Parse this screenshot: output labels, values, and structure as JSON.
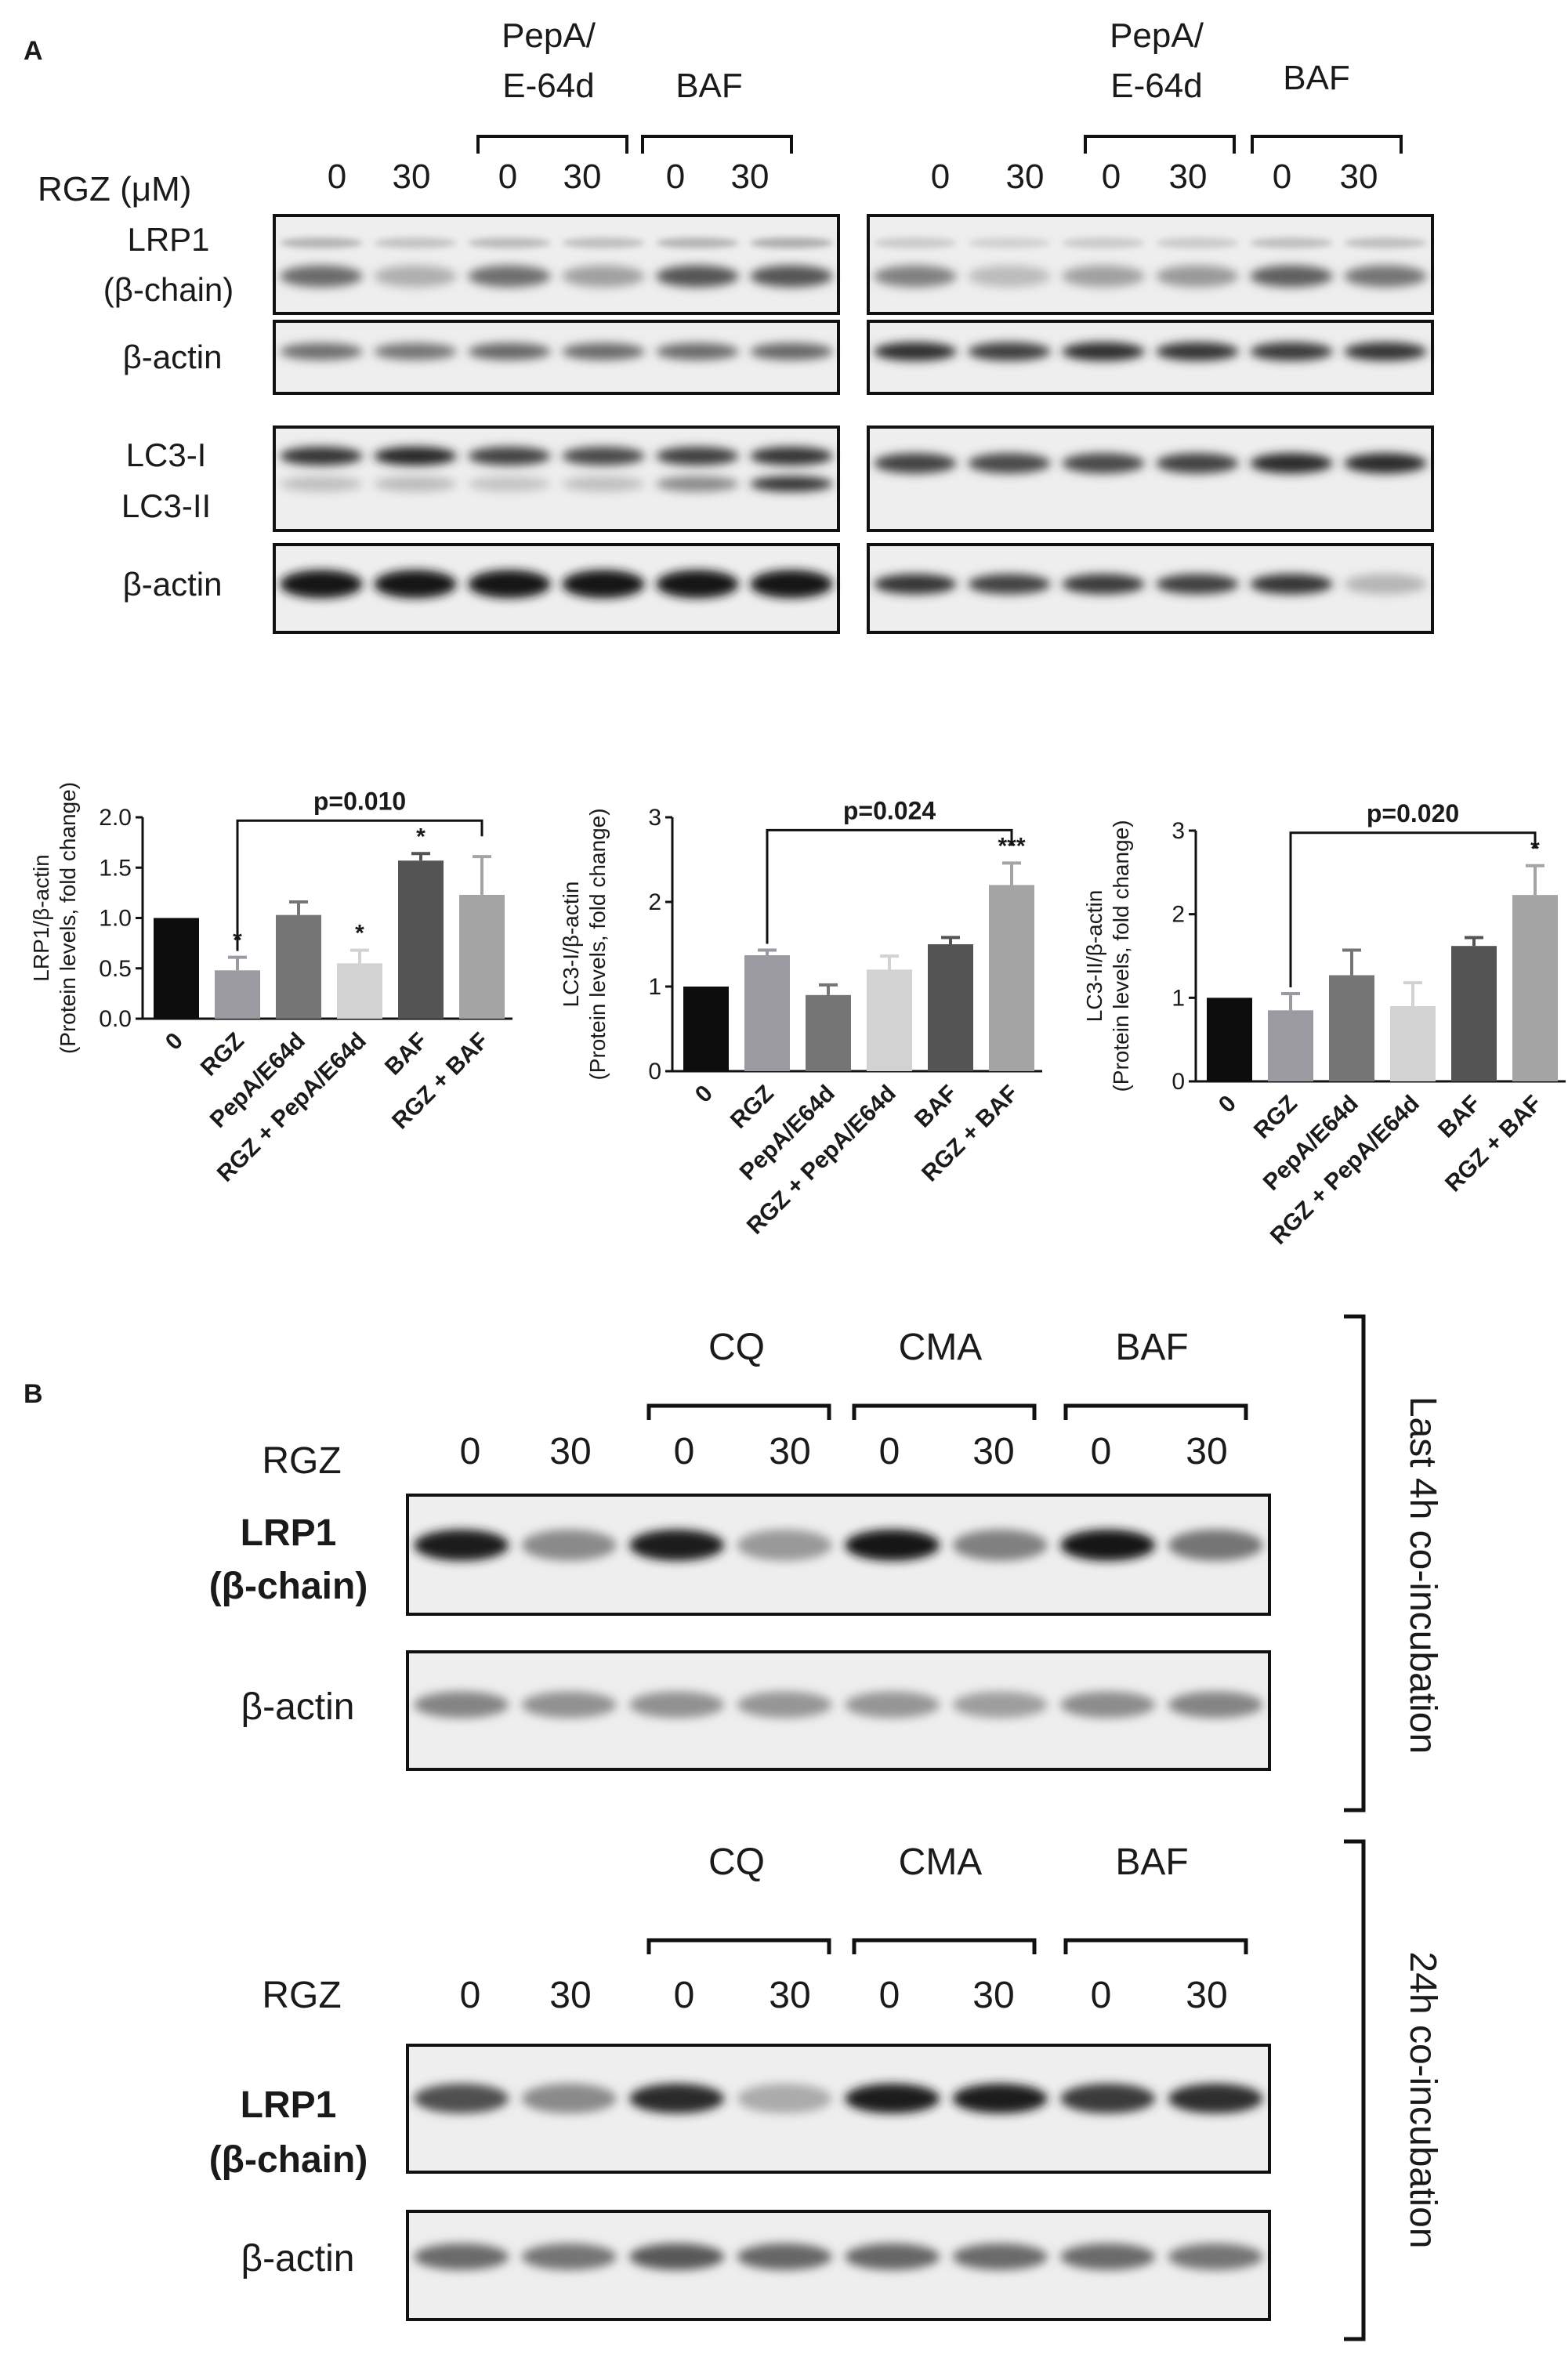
{
  "panel_a": {
    "letter": "A",
    "header": {
      "group1": "PepA/",
      "group1b": "E-64d",
      "group2": "BAF",
      "row_label": "RGZ (μM)",
      "doses": [
        "0",
        "30",
        "0",
        "30",
        "0",
        "30"
      ]
    },
    "row_labels": {
      "lrp1_line1": "LRP1",
      "lrp1_line2": "(β-chain)",
      "actin": "β-actin",
      "lc3_1": "LC3-I",
      "lc3_2": "LC3-II"
    }
  },
  "panel_b": {
    "letter": "B",
    "groups": [
      "CQ",
      "CMA",
      "BAF"
    ],
    "rgz_label": "RGZ",
    "doses": [
      "0",
      "30",
      "0",
      "30",
      "0",
      "30",
      "0",
      "30"
    ],
    "lrp1_line1": "LRP1",
    "lrp1_line2": "(β-chain)",
    "actin": "β-actin",
    "side_top": "Last 4h co-incubation",
    "side_bottom": "24h co-incubation"
  },
  "chart_data": [
    {
      "type": "bar",
      "categories": [
        "0",
        "RGZ",
        "PepA/E64d",
        "RGZ + PepA/E64d",
        "BAF",
        "RGZ + BAF"
      ],
      "values": [
        1.0,
        0.48,
        1.03,
        0.55,
        1.57,
        1.23
      ],
      "errors": [
        0,
        0.13,
        0.13,
        0.13,
        0.07,
        0.38
      ],
      "significance": [
        "",
        "*",
        "",
        "*",
        "*",
        ""
      ],
      "colors": [
        "#0d0d0d",
        "#9a9aa0",
        "#757575",
        "#d2d2d2",
        "#545454",
        "#a4a4a4"
      ],
      "ylabel_line1": "LRP1/β-actin",
      "ylabel_line2": "(Protein levels, fold change)",
      "yticks": [
        "0.0",
        "0.5",
        "1.0",
        "1.5",
        "2.0"
      ],
      "ylim": [
        0,
        2.0
      ],
      "comparison": {
        "from": 1,
        "to": 5,
        "label": "p=0.010"
      }
    },
    {
      "type": "bar",
      "categories": [
        "0",
        "RGZ",
        "PepA/E64d",
        "RGZ + PepA/E64d",
        "BAF",
        "RGZ + BAF"
      ],
      "values": [
        1.0,
        1.37,
        0.9,
        1.2,
        1.5,
        2.2
      ],
      "errors": [
        0,
        0.06,
        0.12,
        0.16,
        0.08,
        0.26
      ],
      "significance": [
        "",
        "",
        "",
        "",
        "",
        "***"
      ],
      "colors": [
        "#0d0d0d",
        "#9a9aa0",
        "#757575",
        "#d2d2d2",
        "#545454",
        "#a4a4a4"
      ],
      "ylabel_line1": "LC3-I/β-actin",
      "ylabel_line2": "(Protein levels, fold change)",
      "yticks": [
        "0",
        "1",
        "2",
        "3"
      ],
      "ylim": [
        0,
        3
      ],
      "comparison": {
        "from": 1,
        "to": 5,
        "label": "p=0.024"
      }
    },
    {
      "type": "bar",
      "categories": [
        "0",
        "RGZ",
        "PepA/E64d",
        "RGZ + PepA/E64d",
        "BAF",
        "RGZ + BAF"
      ],
      "values": [
        1.0,
        0.85,
        1.27,
        0.9,
        1.62,
        2.23
      ],
      "errors": [
        0,
        0.2,
        0.3,
        0.28,
        0.1,
        0.35
      ],
      "significance": [
        "",
        "",
        "",
        "",
        "",
        "*"
      ],
      "colors": [
        "#0d0d0d",
        "#9a9aa0",
        "#757575",
        "#d2d2d2",
        "#545454",
        "#a4a4a4"
      ],
      "ylabel_line1": "LC3-II/β-actin",
      "ylabel_line2": "(Protein levels, fold change)",
      "yticks": [
        "0",
        "1",
        "2",
        "3"
      ],
      "ylim": [
        0,
        3
      ],
      "comparison": {
        "from": 1,
        "to": 5,
        "label": "p=0.020"
      }
    }
  ]
}
